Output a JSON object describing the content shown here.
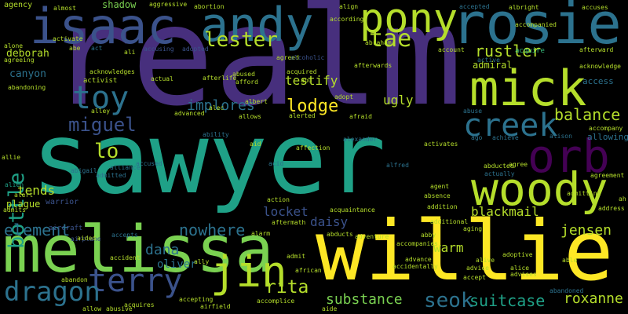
{
  "background": "#000000",
  "words": [
    {
      "text": "realm",
      "color": "#472f7d"
    },
    {
      "text": "sawyer",
      "color": "#1fa187"
    },
    {
      "text": "willie",
      "color": "#fde725"
    },
    {
      "text": "melissa",
      "color": "#7ad151"
    },
    {
      "text": "isaac",
      "color": "#3b528b"
    },
    {
      "text": "andy",
      "color": "#2c728e"
    },
    {
      "text": "rosie",
      "color": "#2c728e"
    },
    {
      "text": "pony",
      "color": "#b5de2b"
    },
    {
      "text": "mick",
      "color": "#b5de2b"
    },
    {
      "text": "orb",
      "color": "#440154"
    },
    {
      "text": "woody",
      "color": "#b5de2b"
    },
    {
      "text": "creek",
      "color": "#2c728e"
    },
    {
      "text": "toy",
      "color": "#2c728e"
    },
    {
      "text": "jin",
      "color": "#b5de2b"
    },
    {
      "text": "terry",
      "color": "#3b528b"
    },
    {
      "text": "dragon",
      "color": "#2c728e"
    },
    {
      "text": "bottle",
      "color": "#1fa187"
    },
    {
      "text": "lester",
      "color": "#b5de2b"
    },
    {
      "text": "tae",
      "color": "#b5de2b"
    },
    {
      "text": "lodge",
      "color": "#fde725"
    },
    {
      "text": "miguel",
      "color": "#3b528b"
    },
    {
      "text": "balance",
      "color": "#b5de2b"
    },
    {
      "text": "rustler",
      "color": "#b5de2b"
    },
    {
      "text": "admiral",
      "color": "#b5de2b"
    },
    {
      "text": "element",
      "color": "#2c728e"
    },
    {
      "text": "nowhere",
      "color": "#2c728e"
    },
    {
      "text": "dana",
      "color": "#2c728e"
    },
    {
      "text": "rita",
      "color": "#b5de2b"
    },
    {
      "text": "seok",
      "color": "#2c728e"
    },
    {
      "text": "substance",
      "color": "#7ad151"
    },
    {
      "text": "suitcase",
      "color": "#1fa187"
    },
    {
      "text": "roxanne",
      "color": "#b5de2b"
    },
    {
      "text": "jensen",
      "color": "#b5de2b"
    },
    {
      "text": "blackmail",
      "color": "#b5de2b"
    },
    {
      "text": "locket",
      "color": "#3b528b"
    },
    {
      "text": "daisy",
      "color": "#3b528b"
    },
    {
      "text": "warm",
      "color": "#b5de2b"
    },
    {
      "text": "implores",
      "color": "#2c728e"
    },
    {
      "text": "testify",
      "color": "#b5de2b"
    },
    {
      "text": "ugly",
      "color": "#b5de2b"
    },
    {
      "text": "deborah",
      "color": "#b5de2b"
    },
    {
      "text": "canyon",
      "color": "#2c728e"
    },
    {
      "text": "tends",
      "color": "#b5de2b"
    },
    {
      "text": "shadow",
      "color": "#7ad151"
    },
    {
      "text": "lo",
      "color": "#b5de2b"
    },
    {
      "text": "oliver",
      "color": "#2c728e"
    },
    {
      "text": "activist",
      "color": "#b5de2b"
    },
    {
      "text": "acknowledges",
      "color": "#b5de2b"
    },
    {
      "text": "plague",
      "color": "#b5de2b"
    },
    {
      "text": "warrior",
      "color": "#3b528b"
    },
    {
      "text": "acquire",
      "color": "#35b779"
    },
    {
      "text": "afterward",
      "color": "#b5de2b"
    },
    {
      "text": "access",
      "color": "#2c728e"
    },
    {
      "text": "acknowledge",
      "color": "#b5de2b"
    },
    {
      "text": "allowing",
      "color": "#2c728e"
    },
    {
      "text": "alien",
      "color": "#1fa187"
    },
    {
      "text": "aircraft",
      "color": "#3b528b"
    },
    {
      "text": "airplane",
      "color": "#3b528b"
    },
    {
      "text": "accusing",
      "color": "#3b528b"
    },
    {
      "text": "adopted",
      "color": "#3b528b"
    },
    {
      "text": "actual",
      "color": "#b5de2b"
    },
    {
      "text": "acquired",
      "color": "#b5de2b"
    },
    {
      "text": "afterwards",
      "color": "#b5de2b"
    },
    {
      "text": "account",
      "color": "#b5de2b"
    },
    {
      "text": "active",
      "color": "#2c728e"
    },
    {
      "text": "abuse",
      "color": "#2c728e"
    },
    {
      "text": "achieve",
      "color": "#2c728e"
    },
    {
      "text": "agree",
      "color": "#b5de2b"
    },
    {
      "text": "actually",
      "color": "#2c728e"
    },
    {
      "text": "abducted",
      "color": "#b5de2b"
    },
    {
      "text": "abandoning",
      "color": "#b5de2b"
    },
    {
      "text": "agreeing",
      "color": "#b5de2b"
    },
    {
      "text": "alone",
      "color": "#b5de2b"
    },
    {
      "text": "almost",
      "color": "#b5de2b"
    },
    {
      "text": "agency",
      "color": "#b5de2b"
    },
    {
      "text": "aggressive",
      "color": "#b5de2b"
    },
    {
      "text": "abortion",
      "color": "#b5de2b"
    },
    {
      "text": "activate",
      "color": "#b5de2b"
    },
    {
      "text": "align",
      "color": "#b5de2b"
    },
    {
      "text": "according",
      "color": "#b5de2b"
    },
    {
      "text": "accepted",
      "color": "#2c728e"
    },
    {
      "text": "albright",
      "color": "#b5de2b"
    },
    {
      "text": "accompanied",
      "color": "#b5de2b"
    },
    {
      "text": "accuses",
      "color": "#b5de2b"
    },
    {
      "text": "abe",
      "color": "#b5de2b"
    },
    {
      "text": "act",
      "color": "#2c728e"
    },
    {
      "text": "ali",
      "color": "#b5de2b"
    },
    {
      "text": "abraham",
      "color": "#b5de2b"
    },
    {
      "text": "agreed",
      "color": "#b5de2b"
    },
    {
      "text": "alcoholic",
      "color": "#3b528b"
    },
    {
      "text": "abu",
      "color": "#b5de2b"
    },
    {
      "text": "alley",
      "color": "#b5de2b"
    },
    {
      "text": "advanced",
      "color": "#b5de2b"
    },
    {
      "text": "allows",
      "color": "#b5de2b"
    },
    {
      "text": "alerted",
      "color": "#b5de2b"
    },
    {
      "text": "afraid",
      "color": "#b5de2b"
    },
    {
      "text": "alec",
      "color": "#b5de2b"
    },
    {
      "text": "afford",
      "color": "#b5de2b"
    },
    {
      "text": "afterlife",
      "color": "#b5de2b"
    },
    {
      "text": "albert",
      "color": "#b5de2b"
    },
    {
      "text": "adopt",
      "color": "#b5de2b"
    },
    {
      "text": "ability",
      "color": "#2c728e"
    },
    {
      "text": "aid",
      "color": "#b5de2b"
    },
    {
      "text": "affection",
      "color": "#b5de2b"
    },
    {
      "text": "alexander",
      "color": "#2c728e"
    },
    {
      "text": "activates",
      "color": "#b5de2b"
    },
    {
      "text": "ago",
      "color": "#2c728e"
    },
    {
      "text": "alison",
      "color": "#2c728e"
    },
    {
      "text": "abigail",
      "color": "#2c728e"
    },
    {
      "text": "alliance",
      "color": "#2c728e"
    },
    {
      "text": "accused",
      "color": "#2c728e"
    },
    {
      "text": "admitted",
      "color": "#2c728e"
    },
    {
      "text": "acid",
      "color": "#2c728e"
    },
    {
      "text": "alfred",
      "color": "#2c728e"
    },
    {
      "text": "alert",
      "color": "#b5de2b"
    },
    {
      "text": "agent",
      "color": "#b5de2b"
    },
    {
      "text": "absence",
      "color": "#b5de2b"
    },
    {
      "text": "acquaintance",
      "color": "#b5de2b"
    },
    {
      "text": "addition",
      "color": "#b5de2b"
    },
    {
      "text": "admits",
      "color": "#b5de2b"
    },
    {
      "text": "action",
      "color": "#b5de2b"
    },
    {
      "text": "abused",
      "color": "#b5de2b"
    },
    {
      "text": "additional",
      "color": "#b5de2b"
    },
    {
      "text": "aftermath",
      "color": "#b5de2b"
    },
    {
      "text": "abducts",
      "color": "#b5de2b"
    },
    {
      "text": "adventure",
      "color": "#b5de2b"
    },
    {
      "text": "aging",
      "color": "#b5de2b"
    },
    {
      "text": "abby",
      "color": "#b5de2b"
    },
    {
      "text": "accepts",
      "color": "#2c728e"
    },
    {
      "text": "alarm",
      "color": "#b5de2b"
    },
    {
      "text": "admit",
      "color": "#b5de2b"
    },
    {
      "text": "accompanies",
      "color": "#b5de2b"
    },
    {
      "text": "accidentally",
      "color": "#b5de2b"
    },
    {
      "text": "advance",
      "color": "#b5de2b"
    },
    {
      "text": "advice",
      "color": "#b5de2b"
    },
    {
      "text": "adoptive",
      "color": "#b5de2b"
    },
    {
      "text": "alice",
      "color": "#b5de2b"
    },
    {
      "text": "advises",
      "color": "#b5de2b"
    },
    {
      "text": "accept",
      "color": "#b5de2b"
    },
    {
      "text": "accident",
      "color": "#b5de2b"
    },
    {
      "text": "ally",
      "color": "#b5de2b"
    },
    {
      "text": "abandon",
      "color": "#b5de2b"
    },
    {
      "text": "african",
      "color": "#b5de2b"
    },
    {
      "text": "accomplice",
      "color": "#b5de2b"
    },
    {
      "text": "accepting",
      "color": "#b5de2b"
    },
    {
      "text": "acquires",
      "color": "#b5de2b"
    },
    {
      "text": "allow",
      "color": "#b5de2b"
    },
    {
      "text": "abusive",
      "color": "#b5de2b"
    },
    {
      "text": "airfield",
      "color": "#b5de2b"
    },
    {
      "text": "aide",
      "color": "#b5de2b"
    },
    {
      "text": "abandoned",
      "color": "#2c728e"
    },
    {
      "text": "alive",
      "color": "#b5de2b"
    },
    {
      "text": "able",
      "color": "#b5de2b"
    },
    {
      "text": "agreement",
      "color": "#b5de2b"
    },
    {
      "text": "accompany",
      "color": "#b5de2b"
    },
    {
      "text": "address",
      "color": "#b5de2b"
    },
    {
      "text": "admitting",
      "color": "#b5de2b"
    },
    {
      "text": "aided",
      "color": "#b5de2b"
    },
    {
      "text": "allie",
      "color": "#b5de2b"
    },
    {
      "text": "ah",
      "color": "#b5de2b"
    }
  ]
}
